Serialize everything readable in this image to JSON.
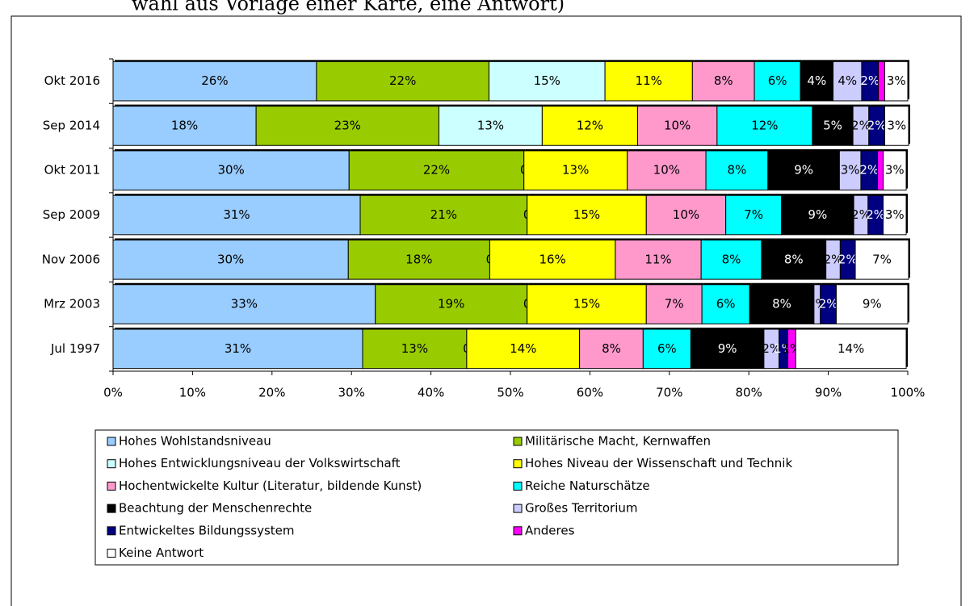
{
  "chart_data": {
    "type": "stacked-bar-horizontal",
    "title": "wahl aus Vorlage einer Karte, eine Antwort)",
    "categories": [
      "Okt 2016",
      "Sep 2014",
      "Okt 2011",
      "Sep 2009",
      "Nov 2006",
      "Mrz 2003",
      "Jul 1997"
    ],
    "xlim": [
      0,
      100
    ],
    "xticks": [
      {
        "value": 0,
        "label": "0%"
      },
      {
        "value": 10,
        "label": "10%"
      },
      {
        "value": 20,
        "label": "20%"
      },
      {
        "value": 30,
        "label": "30%"
      },
      {
        "value": 40,
        "label": "40%"
      },
      {
        "value": 50,
        "label": "50%"
      },
      {
        "value": 60,
        "label": "60%"
      },
      {
        "value": 70,
        "label": "70%"
      },
      {
        "value": 80,
        "label": "80%"
      },
      {
        "value": 90,
        "label": "90%"
      },
      {
        "value": 100,
        "label": "100%"
      }
    ],
    "series": [
      {
        "name": "Hohes Wohlstandsniveau",
        "color": "#99ccff",
        "values": [
          25.6,
          18.0,
          29.7,
          31.1,
          29.6,
          33.0,
          31.4
        ],
        "value_labels": [
          "26%",
          "18%",
          "30%",
          "31%",
          "30%",
          "33%",
          "31%"
        ]
      },
      {
        "name": "Militärische Macht, Kernwaffen",
        "color": "#99cc00",
        "values": [
          21.7,
          23.0,
          22.0,
          21.0,
          17.8,
          19.1,
          13.1
        ],
        "value_labels": [
          "22%",
          "23%",
          "22%",
          "21%",
          "18%",
          "19%",
          "13%"
        ]
      },
      {
        "name": "Hohes Entwicklungsniveau der Volkswirtschaft",
        "color": "#ccffff",
        "values": [
          14.6,
          13.0,
          0,
          0,
          0,
          0,
          0
        ],
        "value_labels": [
          "15%",
          "13%",
          "0",
          "0",
          "0",
          "0",
          "0"
        ]
      },
      {
        "name": "Hohes Niveau der Wissenschaft und Technik",
        "color": "#ffff00",
        "values": [
          11.0,
          12.0,
          13.0,
          15.0,
          15.8,
          15.0,
          14.2
        ],
        "value_labels": [
          "11%",
          "12%",
          "13%",
          "15%",
          "16%",
          "15%",
          "14%"
        ]
      },
      {
        "name": "Hochentwickelte Kultur (Literatur, bildende Kunst)",
        "color": "#ff99cc",
        "values": [
          7.8,
          10.0,
          9.9,
          10.0,
          10.8,
          7.0,
          8.0
        ],
        "value_labels": [
          "8%",
          "10%",
          "10%",
          "10%",
          "11%",
          "7%",
          "8%"
        ]
      },
      {
        "name": "Reiche Naturschätze",
        "color": "#00ffff",
        "values": [
          5.8,
          12.0,
          7.8,
          7.0,
          7.6,
          6.0,
          6.0
        ],
        "value_labels": [
          "6%",
          "12%",
          "8%",
          "7%",
          "8%",
          "6%",
          "6%"
        ]
      },
      {
        "name": "Beachtung der Menschenrechte",
        "color": "#000000",
        "values": [
          4.1,
          5.1,
          9.0,
          9.1,
          8.1,
          8.1,
          9.2
        ],
        "value_labels": [
          "4%",
          "5%",
          "9%",
          "9%",
          "8%",
          "8%",
          "9%"
        ]
      },
      {
        "name": "Großes Territorium",
        "color": "#ccccff",
        "values": [
          3.6,
          2.0,
          2.7,
          1.8,
          1.8,
          0.8,
          1.9
        ],
        "value_labels": [
          "4%",
          "2%",
          "3%",
          "2%",
          "2%",
          "1%",
          "2%"
        ]
      },
      {
        "name": "Entwickeltes Bildungssystem",
        "color": "#000080",
        "values": [
          2.1,
          2.0,
          2.1,
          1.9,
          1.9,
          2.0,
          1.1
        ],
        "value_labels": [
          "2%",
          "2%",
          "2%",
          "2%",
          "2%",
          "2%",
          "1%"
        ]
      },
      {
        "name": "Anderes",
        "color": "#ff00ff",
        "values": [
          0.8,
          0,
          0.7,
          0,
          0,
          0,
          1.0
        ],
        "value_labels": [
          null,
          null,
          null,
          null,
          null,
          null,
          "1%"
        ]
      },
      {
        "name": "Keine Antwort",
        "color": "#ffffff",
        "values": [
          2.9,
          3.0,
          2.9,
          2.9,
          6.7,
          9.0,
          13.9
        ],
        "value_labels": [
          "3%",
          "3%",
          "3%",
          "3%",
          "7%",
          "9%",
          "14%"
        ]
      }
    ]
  }
}
